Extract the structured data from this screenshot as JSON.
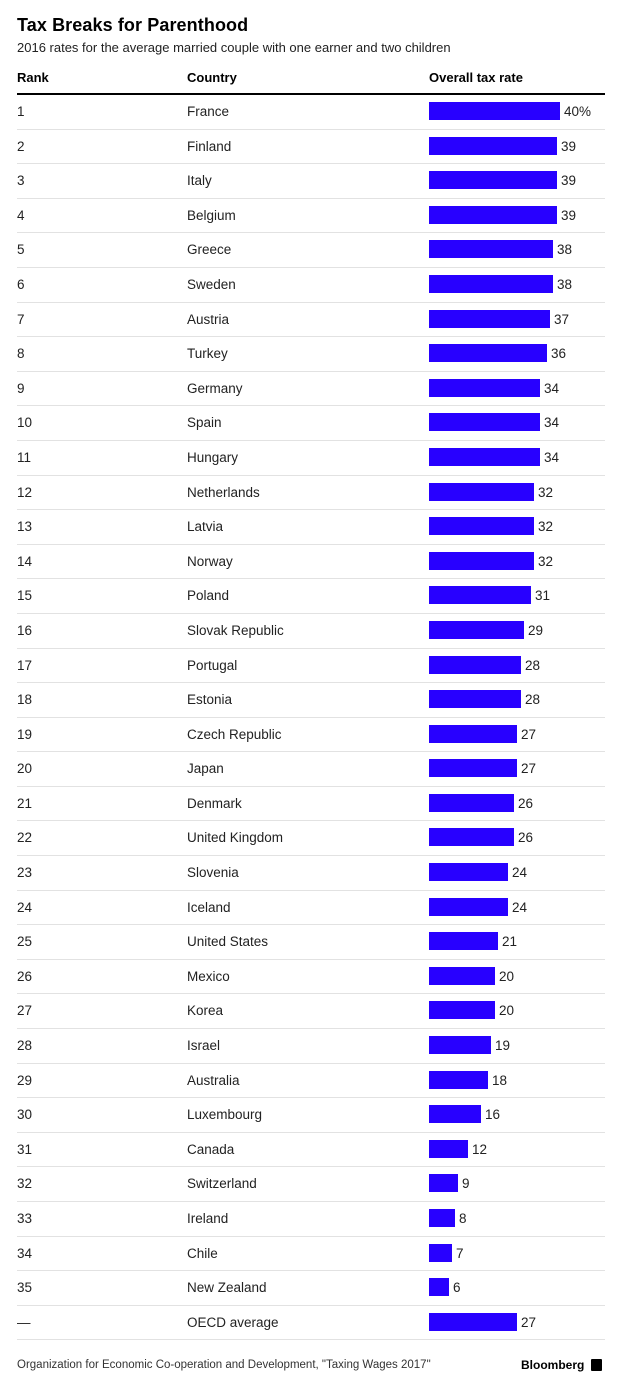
{
  "title": "Tax Breaks for Parenthood",
  "subtitle": "2016 rates for the average married couple with one earner and two children",
  "columns": {
    "rank": "Rank",
    "country": "Country",
    "rate": "Overall tax rate"
  },
  "source": "Organization for Economic Co-operation and Development, \"Taxing Wages 2017\"",
  "brand": "Bloomberg",
  "colors": {
    "bar": "#2800ff"
  },
  "chart_data": {
    "type": "bar",
    "orientation": "horizontal",
    "max_value": 40,
    "rows": [
      {
        "rank": "1",
        "country": "France",
        "value": 40,
        "label": "40%"
      },
      {
        "rank": "2",
        "country": "Finland",
        "value": 39,
        "label": "39"
      },
      {
        "rank": "3",
        "country": "Italy",
        "value": 39,
        "label": "39"
      },
      {
        "rank": "4",
        "country": "Belgium",
        "value": 39,
        "label": "39"
      },
      {
        "rank": "5",
        "country": "Greece",
        "value": 38,
        "label": "38"
      },
      {
        "rank": "6",
        "country": "Sweden",
        "value": 38,
        "label": "38"
      },
      {
        "rank": "7",
        "country": "Austria",
        "value": 37,
        "label": "37"
      },
      {
        "rank": "8",
        "country": "Turkey",
        "value": 36,
        "label": "36"
      },
      {
        "rank": "9",
        "country": "Germany",
        "value": 34,
        "label": "34"
      },
      {
        "rank": "10",
        "country": "Spain",
        "value": 34,
        "label": "34"
      },
      {
        "rank": "11",
        "country": "Hungary",
        "value": 34,
        "label": "34"
      },
      {
        "rank": "12",
        "country": "Netherlands",
        "value": 32,
        "label": "32"
      },
      {
        "rank": "13",
        "country": "Latvia",
        "value": 32,
        "label": "32"
      },
      {
        "rank": "14",
        "country": "Norway",
        "value": 32,
        "label": "32"
      },
      {
        "rank": "15",
        "country": "Poland",
        "value": 31,
        "label": "31"
      },
      {
        "rank": "16",
        "country": "Slovak Republic",
        "value": 29,
        "label": "29"
      },
      {
        "rank": "17",
        "country": "Portugal",
        "value": 28,
        "label": "28"
      },
      {
        "rank": "18",
        "country": "Estonia",
        "value": 28,
        "label": "28"
      },
      {
        "rank": "19",
        "country": "Czech Republic",
        "value": 27,
        "label": "27"
      },
      {
        "rank": "20",
        "country": "Japan",
        "value": 27,
        "label": "27"
      },
      {
        "rank": "21",
        "country": "Denmark",
        "value": 26,
        "label": "26"
      },
      {
        "rank": "22",
        "country": "United Kingdom",
        "value": 26,
        "label": "26"
      },
      {
        "rank": "23",
        "country": "Slovenia",
        "value": 24,
        "label": "24"
      },
      {
        "rank": "24",
        "country": "Iceland",
        "value": 24,
        "label": "24"
      },
      {
        "rank": "25",
        "country": "United States",
        "value": 21,
        "label": "21"
      },
      {
        "rank": "26",
        "country": "Mexico",
        "value": 20,
        "label": "20"
      },
      {
        "rank": "27",
        "country": "Korea",
        "value": 20,
        "label": "20"
      },
      {
        "rank": "28",
        "country": "Israel",
        "value": 19,
        "label": "19"
      },
      {
        "rank": "29",
        "country": "Australia",
        "value": 18,
        "label": "18"
      },
      {
        "rank": "30",
        "country": "Luxembourg",
        "value": 16,
        "label": "16"
      },
      {
        "rank": "31",
        "country": "Canada",
        "value": 12,
        "label": "12"
      },
      {
        "rank": "32",
        "country": "Switzerland",
        "value": 9,
        "label": "9"
      },
      {
        "rank": "33",
        "country": "Ireland",
        "value": 8,
        "label": "8"
      },
      {
        "rank": "34",
        "country": "Chile",
        "value": 7,
        "label": "7"
      },
      {
        "rank": "35",
        "country": "New Zealand",
        "value": 6,
        "label": "6"
      },
      {
        "rank": "—",
        "country": "OECD average",
        "value": 27,
        "label": "27"
      }
    ]
  }
}
